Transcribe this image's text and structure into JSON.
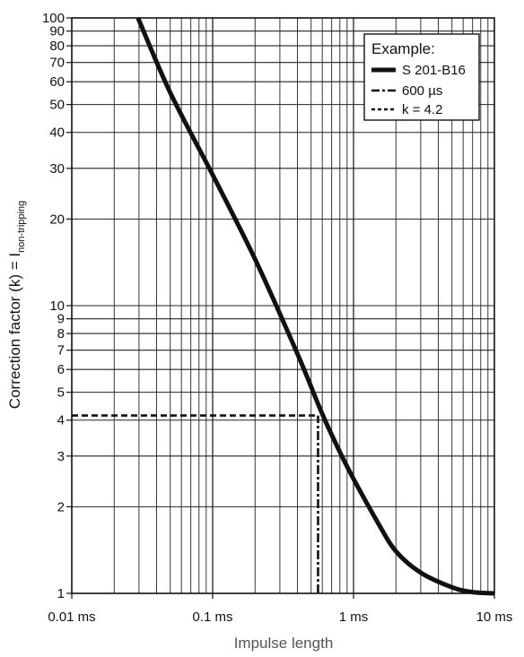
{
  "chart_data": {
    "type": "line",
    "x_scale": "log",
    "y_scale": "log",
    "xlim": [
      0.01,
      10
    ],
    "ylim": [
      1,
      100
    ],
    "xlabel": "Impulse length",
    "ylabel_main": "Correction factor (k) = I",
    "ylabel_sub": "non-tripping",
    "x_ticks": [
      {
        "value": 0.01,
        "label": "0.01 ms"
      },
      {
        "value": 0.1,
        "label": "0.1 ms"
      },
      {
        "value": 1,
        "label": "1 ms"
      },
      {
        "value": 10,
        "label": "10 ms"
      }
    ],
    "y_ticks": [
      {
        "value": 1,
        "label": "1"
      },
      {
        "value": 2,
        "label": "2"
      },
      {
        "value": 3,
        "label": "3"
      },
      {
        "value": 4,
        "label": "4"
      },
      {
        "value": 5,
        "label": "5"
      },
      {
        "value": 6,
        "label": "6"
      },
      {
        "value": 7,
        "label": "7"
      },
      {
        "value": 8,
        "label": "8"
      },
      {
        "value": 9,
        "label": "9"
      },
      {
        "value": 10,
        "label": "10"
      },
      {
        "value": 20,
        "label": "20"
      },
      {
        "value": 30,
        "label": "30"
      },
      {
        "value": 40,
        "label": "40"
      },
      {
        "value": 50,
        "label": "50"
      },
      {
        "value": 60,
        "label": "60"
      },
      {
        "value": 70,
        "label": "70"
      },
      {
        "value": 80,
        "label": "80"
      },
      {
        "value": 90,
        "label": "90"
      },
      {
        "value": 100,
        "label": "100"
      }
    ],
    "grid": true,
    "legend": {
      "title": "Example:",
      "position": "top-right",
      "entries": [
        {
          "label": "S 201-B16",
          "style": "solid"
        },
        {
          "label": "600 µs",
          "style": "dash-dot"
        },
        {
          "label": "k = 4.2",
          "style": "dashed"
        }
      ]
    },
    "series": [
      {
        "name": "S 201-B16",
        "style": "solid",
        "points": [
          [
            0.0295,
            100
          ],
          [
            0.05,
            55
          ],
          [
            0.1,
            28.5
          ],
          [
            0.2,
            14.5
          ],
          [
            0.4,
            6.8
          ],
          [
            0.6,
            4.2
          ],
          [
            0.8,
            3.1
          ],
          [
            1.0,
            2.5
          ],
          [
            1.5,
            1.75
          ],
          [
            2.0,
            1.4
          ],
          [
            3.0,
            1.18
          ],
          [
            5.0,
            1.05
          ],
          [
            7.0,
            1.01
          ],
          [
            10.0,
            1.0
          ]
        ]
      }
    ],
    "reference_lines": [
      {
        "name": "600 µs",
        "style": "dash-dot",
        "orientation": "vertical",
        "x": 0.56,
        "y_from": 1,
        "y_to": 4.15
      },
      {
        "name": "k = 4.2",
        "style": "dashed",
        "orientation": "horizontal",
        "y": 4.15,
        "x_from": 0.01,
        "x_to": 0.56
      }
    ]
  }
}
